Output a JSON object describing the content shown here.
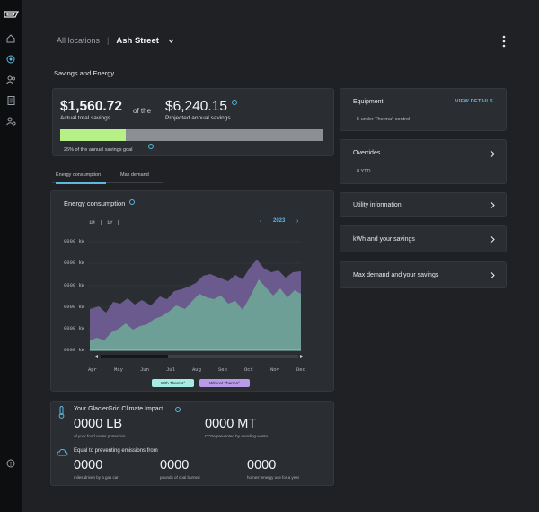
{
  "nav": {
    "icons": [
      "logo-icon",
      "home-icon",
      "energy-icon",
      "users-icon",
      "document-icon",
      "user-settings-icon",
      "help-icon"
    ]
  },
  "header": {
    "breadcrumb_all": "All locations",
    "breadcrumb_separator": "|",
    "location": "Ash Street"
  },
  "section_title": "Savings and Energy",
  "savings": {
    "actual_amount": "$1,560.72",
    "actual_label": "Actual total savings",
    "of_the": "of the",
    "projected_amount": "$6,240.15",
    "projected_label": "Projected annual savings",
    "progress_fraction": 0.25,
    "goal_text": "25% of the annual savings goal"
  },
  "tabs": [
    {
      "label": "Energy consumption",
      "active": true
    },
    {
      "label": "Max demand",
      "active": false
    }
  ],
  "chart_panel": {
    "title": "Energy consumption",
    "range_1m": "1M",
    "range_sep": "|",
    "range_1y": "1Y",
    "year_prev": "‹",
    "year": "2023",
    "year_next": "›"
  },
  "chart_data": {
    "type": "area",
    "x": [
      "Apr",
      "May",
      "Jun",
      "Jul",
      "Aug",
      "Sep",
      "Oct",
      "Nov",
      "Dec"
    ],
    "y_tick_labels": [
      "0000 kW",
      "0000 kW",
      "0000 kW",
      "0000 kW",
      "0000 kW",
      "0000 kW"
    ],
    "series": [
      {
        "name": "With Therma",
        "color": "#6e9f96"
      },
      {
        "name": "Without Therma",
        "color": "#6b5a8e"
      }
    ],
    "legend_labels": [
      "With Therma°",
      "Without Therma°"
    ],
    "grid": true,
    "scrollbar": true
  },
  "right_panel": {
    "equipment_title": "Equipment",
    "equipment_action": "VIEW DETAILS",
    "equipment_sub": "5 under Therma° control",
    "overrides_title": "Overrides",
    "overrides_sub": "8 YTD",
    "utility_title": "Utility information",
    "kwh_title": "kWh and your savings",
    "maxdemand_title": "Max demand and your savings"
  },
  "impact": {
    "title": "Your GlacierGrid Climate Impact",
    "lb_value": "0000 LB",
    "lb_label": "of your food under protection",
    "mt_value": "0000 MT",
    "mt_label": "CO2e prevented by avoiding waste",
    "equal_title": "Equal to preventing emissions from",
    "miles_value": "0000",
    "miles_label": "miles driven by a gas car",
    "coal_value": "0000",
    "coal_label": "pounds of coal burned",
    "homes_value": "0000",
    "homes_label": "homes' energy use for a year"
  },
  "colors": {
    "accent": "#5fb8df",
    "progress": "#b6f087",
    "with_therma": "#6e9f96",
    "without_therma": "#6b5a8e"
  }
}
